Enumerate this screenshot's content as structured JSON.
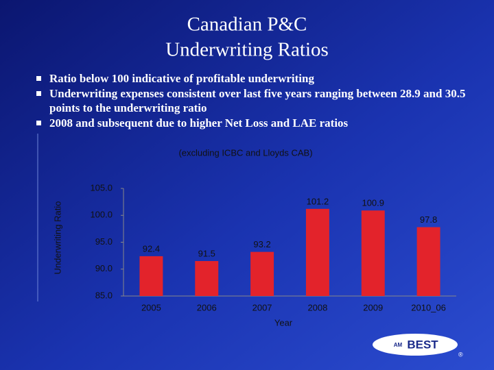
{
  "slide": {
    "title": [
      "Canadian P&C",
      "Underwriting Ratios"
    ],
    "bullets": [
      "Ratio below 100 indicative of profitable underwriting",
      "Underwriting expenses consistent over last five years ranging between 28.9 and 30.5 points to the underwriting ratio",
      "2008 and subsequent due to higher  Net Loss and LAE ratios"
    ],
    "logo": {
      "mark": "AM",
      "text": "BEST",
      "registered": "®"
    }
  },
  "chart_data": {
    "type": "bar",
    "title": "(excluding ICBC and Lloyds CAB)",
    "x_label": "Year",
    "y_label": "Underwriting Ratio",
    "categories": [
      "2005",
      "2006",
      "2007",
      "2008",
      "2009",
      "2010_06"
    ],
    "values": [
      92.4,
      91.5,
      93.2,
      101.2,
      100.9,
      97.8
    ],
    "color": "#e3232b",
    "ylim": [
      85,
      105
    ],
    "yticks": [
      {
        "value": 85,
        "label": "85.0"
      },
      {
        "value": 90,
        "label": "90.0"
      },
      {
        "value": 95,
        "label": "95.0"
      },
      {
        "value": 100,
        "label": "100.0"
      },
      {
        "value": 105,
        "label": "105.0"
      }
    ],
    "grid": false
  }
}
